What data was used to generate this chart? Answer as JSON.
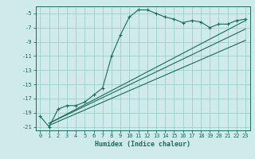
{
  "xlabel": "Humidex (Indice chaleur)",
  "bg_color": "#ceeaea",
  "grid_color": "#9fcece",
  "line_color": "#1a6b5a",
  "xlim": [
    -0.5,
    23.5
  ],
  "ylim": [
    -21.5,
    -4.0
  ],
  "xticks": [
    0,
    1,
    2,
    3,
    4,
    5,
    6,
    7,
    8,
    9,
    10,
    11,
    12,
    13,
    14,
    15,
    16,
    17,
    18,
    19,
    20,
    21,
    22,
    23
  ],
  "yticks": [
    -21,
    -19,
    -17,
    -15,
    -13,
    -11,
    -9,
    -7,
    -5
  ],
  "main_x": [
    0,
    1,
    2,
    3,
    4,
    5,
    6,
    7,
    8,
    9,
    10,
    11,
    12,
    13,
    14,
    15,
    16,
    17,
    18,
    19,
    20,
    21,
    22,
    23
  ],
  "main_y": [
    -19.5,
    -21,
    -18.5,
    -18.0,
    -18.0,
    -17.5,
    -16.5,
    -15.5,
    -11.0,
    -8.0,
    -5.5,
    -4.5,
    -4.5,
    -5.0,
    -5.5,
    -5.8,
    -6.3,
    -6.0,
    -6.2,
    -7.0,
    -6.5,
    -6.5,
    -6.0,
    -5.8
  ],
  "line1_x": [
    1,
    23
  ],
  "line1_y": [
    -20.5,
    -6.0
  ],
  "line2_x": [
    1,
    23
  ],
  "line2_y": [
    -20.5,
    -7.2
  ],
  "line3_x": [
    1,
    23
  ],
  "line3_y": [
    -20.8,
    -8.8
  ]
}
